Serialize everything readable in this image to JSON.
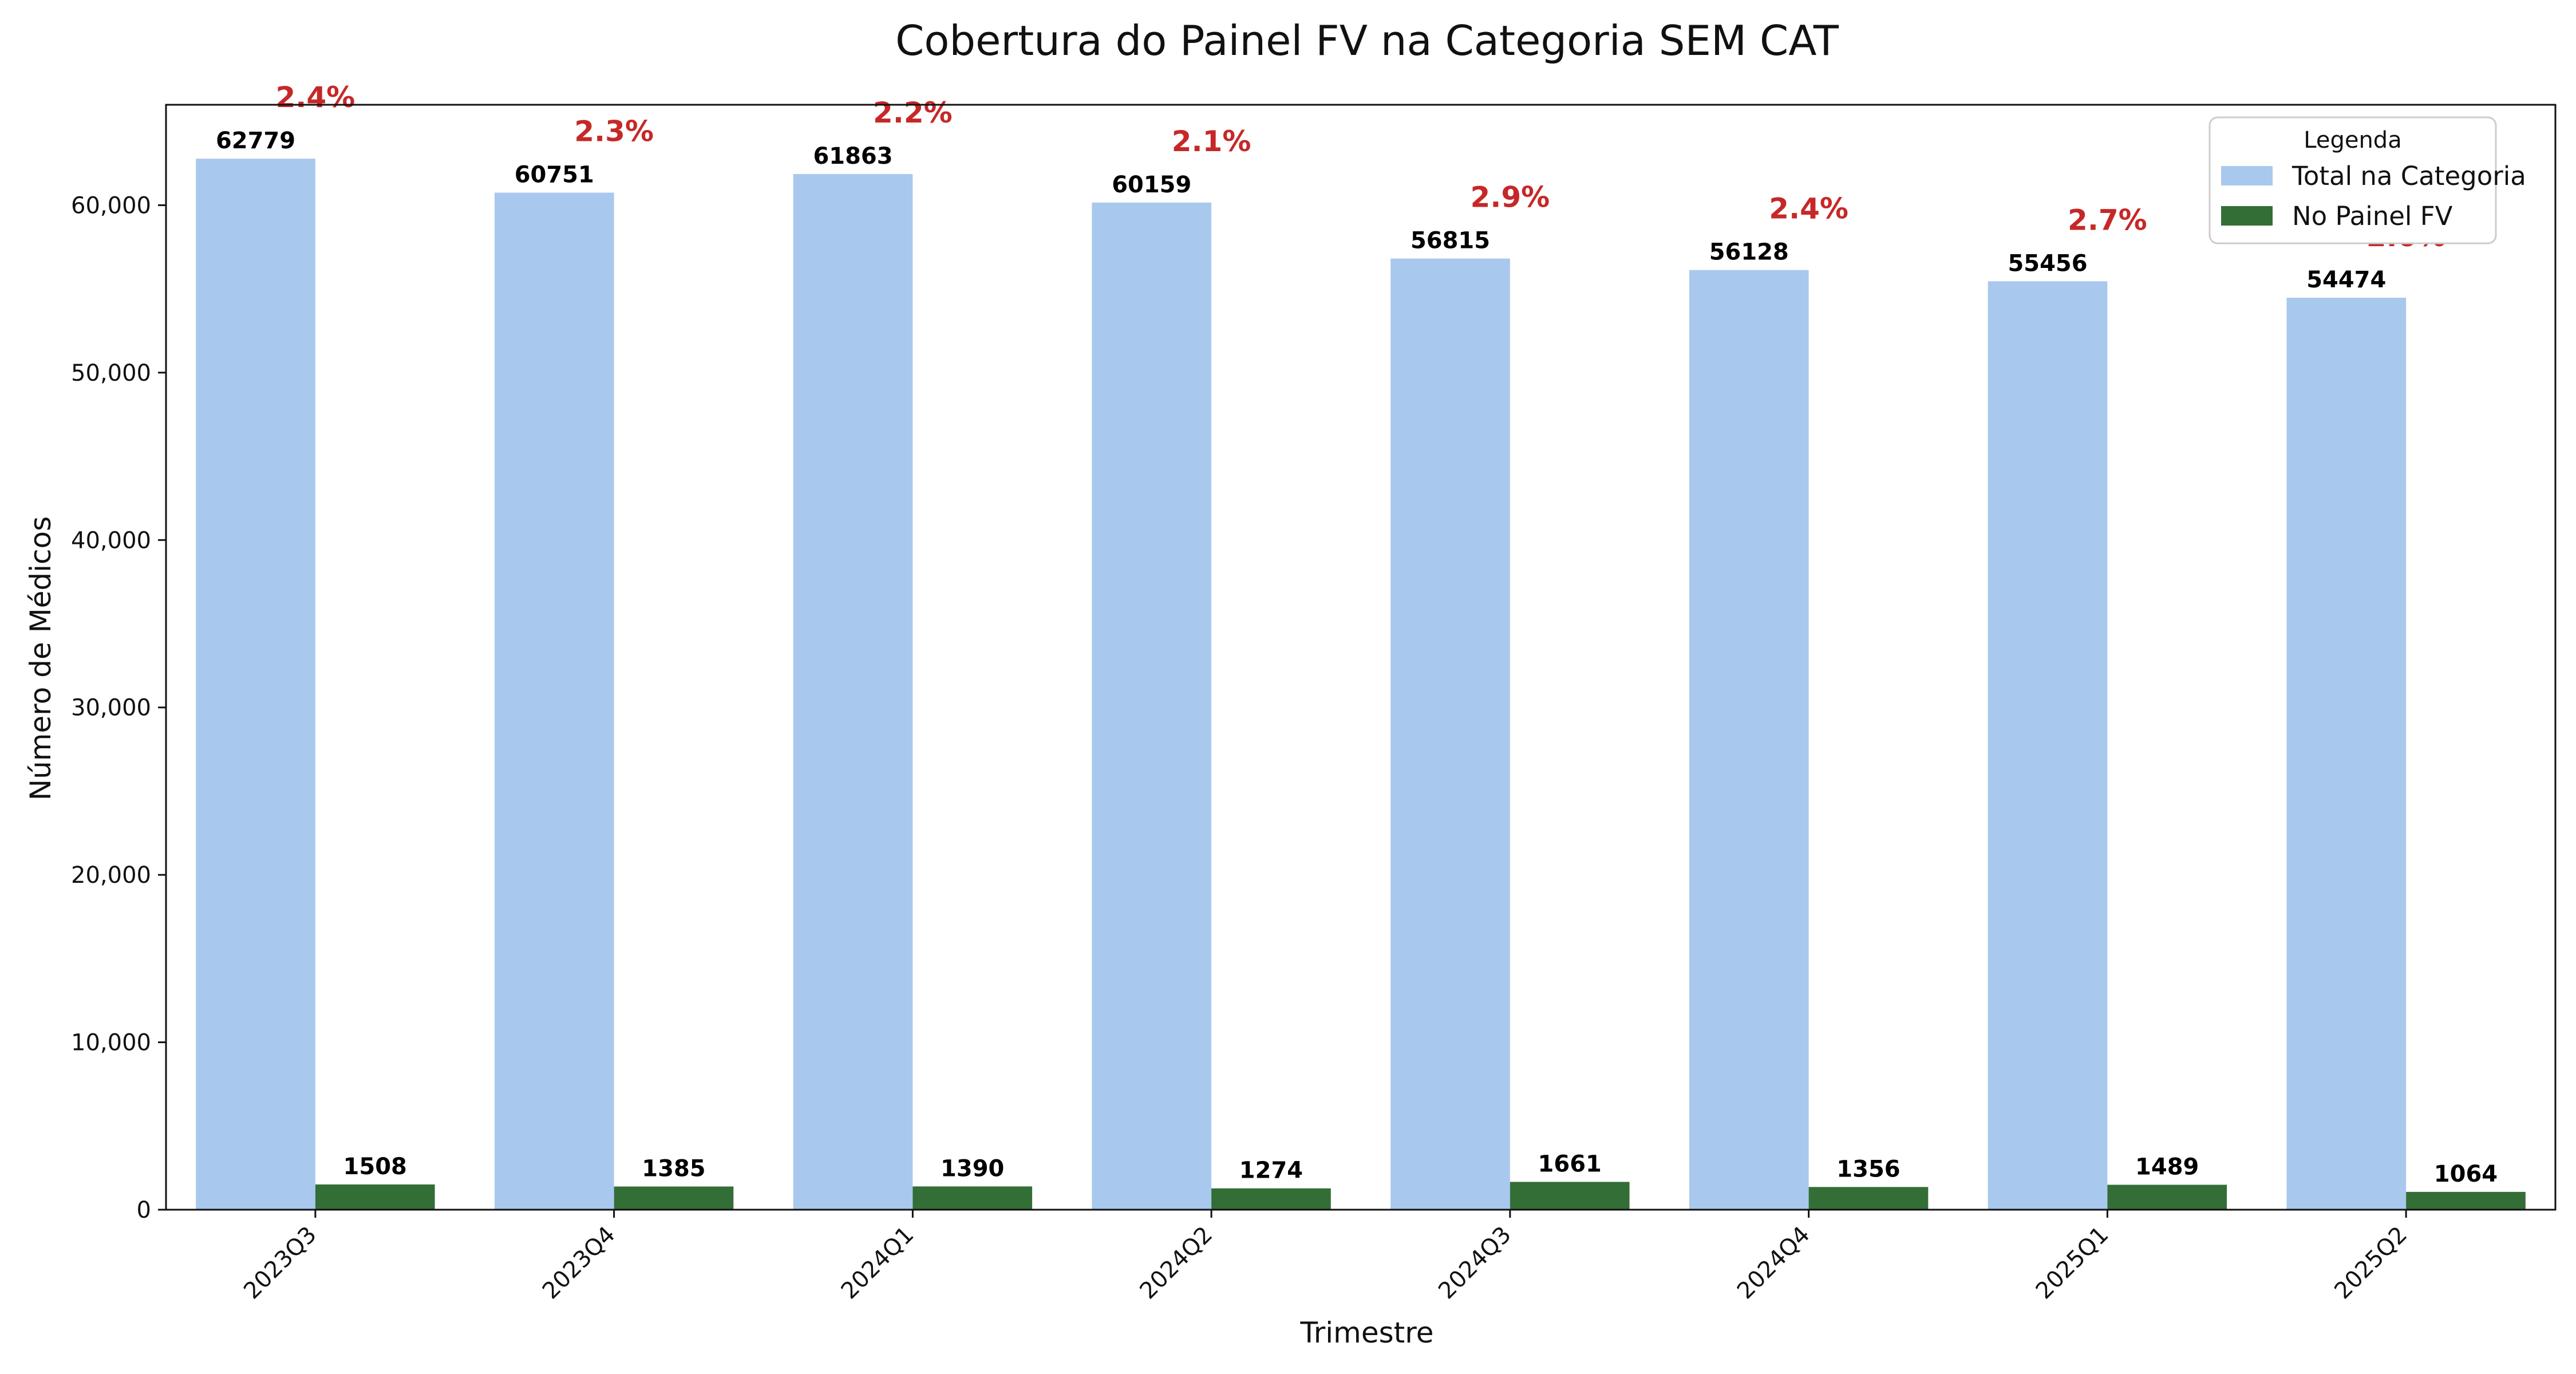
{
  "chart_data": {
    "type": "bar",
    "title": "Cobertura do Painel FV na Categoria SEM CAT",
    "xlabel": "Trimestre",
    "ylabel": "Número de Médicos",
    "categories": [
      "2023Q3",
      "2023Q4",
      "2024Q1",
      "2024Q2",
      "2024Q3",
      "2024Q4",
      "2025Q1",
      "2025Q2"
    ],
    "series": [
      {
        "name": "Total na Categoria",
        "color": "#A9C8EE",
        "values": [
          62779,
          60751,
          61863,
          60159,
          56815,
          56128,
          55456,
          54474
        ],
        "labels": [
          "62779",
          "60751",
          "61863",
          "60159",
          "56815",
          "56128",
          "55456",
          "54474"
        ]
      },
      {
        "name": "No Painel FV",
        "color": "#336E37",
        "values": [
          1508,
          1385,
          1390,
          1274,
          1661,
          1356,
          1489,
          1064
        ],
        "labels": [
          "1508",
          "1385",
          "1390",
          "1274",
          "1661",
          "1356",
          "1489",
          "1064"
        ]
      }
    ],
    "percent_labels": [
      "2.4%",
      "2.3%",
      "2.2%",
      "2.1%",
      "2.9%",
      "2.4%",
      "2.7%",
      "2.0%"
    ],
    "percent_color": "#C62828",
    "ylim": [
      0,
      66000
    ],
    "yticks": [
      0,
      10000,
      20000,
      30000,
      40000,
      50000,
      60000
    ],
    "ytick_labels": [
      "0",
      "10,000",
      "20,000",
      "30,000",
      "40,000",
      "50,000",
      "60,000"
    ],
    "grid": false,
    "legend": {
      "title": "Legenda",
      "placement": "top-right"
    }
  }
}
